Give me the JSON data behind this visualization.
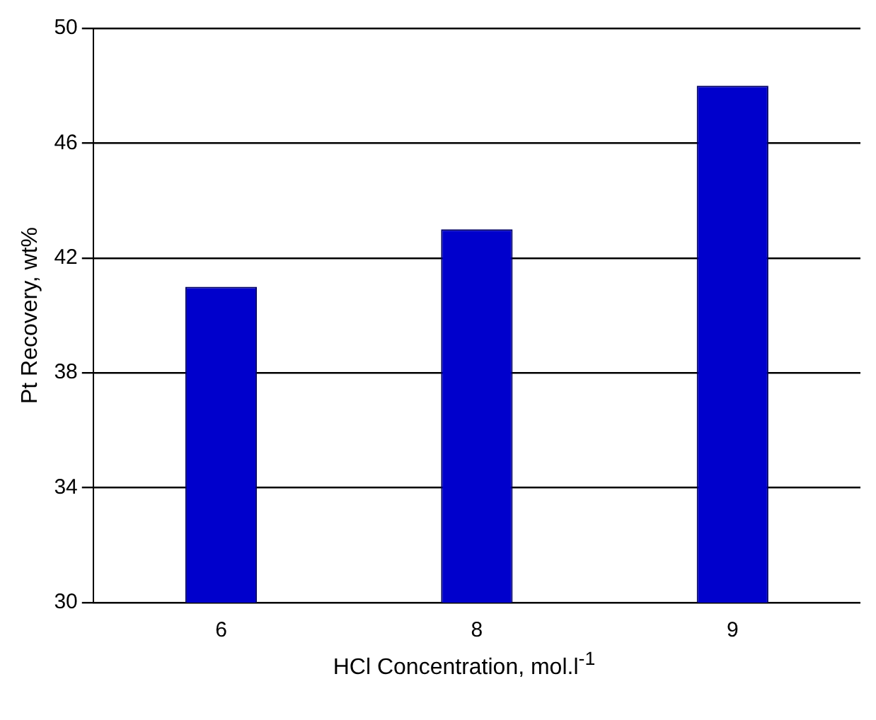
{
  "chart_data": {
    "type": "bar",
    "categories": [
      "6",
      "8",
      "9"
    ],
    "values": [
      41,
      43,
      48
    ],
    "color": "#0000cc",
    "ylabel": "Pt Recovery, wt%",
    "xlabel": "HCl Concentration, mol.l$^{-1}$",
    "ylim": [
      30,
      50
    ],
    "yticks": [
      30,
      34,
      38,
      42,
      46,
      50
    ],
    "grid": "y"
  }
}
